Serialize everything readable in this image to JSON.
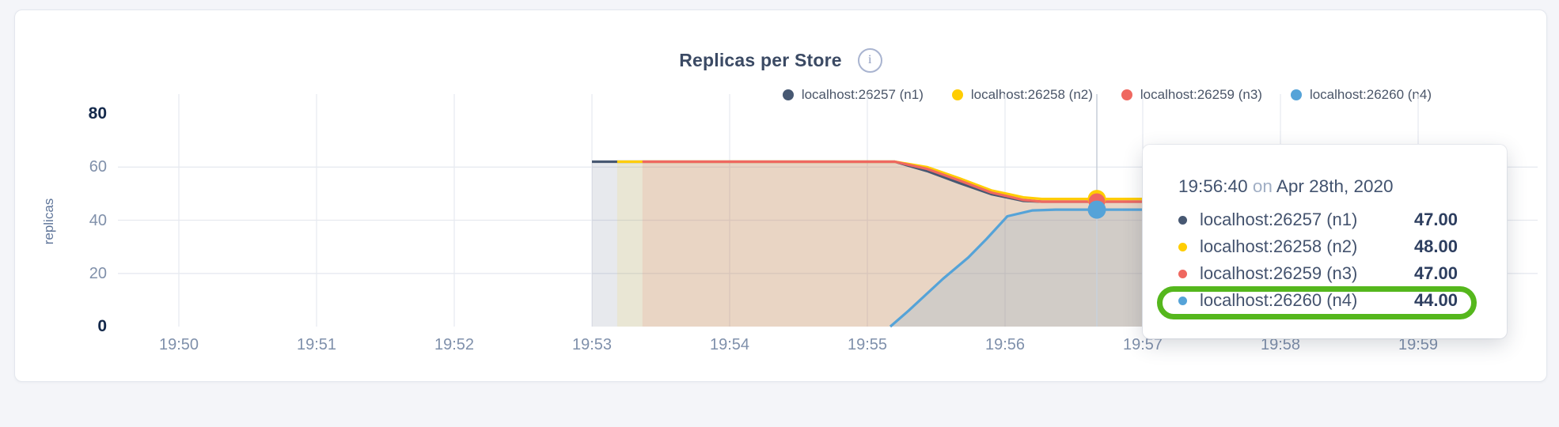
{
  "colors": {
    "page_bg": "#f4f5f9",
    "card_bg": "#ffffff",
    "grid": "#e7eaf0",
    "hover_line": "#c9d0da",
    "annotation_green": "#55b71d"
  },
  "info_icon_glyph": "i",
  "chart_data": {
    "type": "area",
    "title": "Replicas per Store",
    "xlabel": "",
    "ylabel": "replicas",
    "x_ticks": [
      "19:50",
      "19:51",
      "19:52",
      "19:53",
      "19:54",
      "19:55",
      "19:56",
      "19:57",
      "19:58",
      "19:59"
    ],
    "y_ticks": [
      0,
      20,
      40,
      60,
      80
    ],
    "bold_y_ticks": [
      0,
      80
    ],
    "ylim": [
      0,
      80
    ],
    "grid": true,
    "legend_position": "top-right",
    "x_unit_note": "seconds after 19:50:00 on Apr 28th, 2020",
    "series": [
      {
        "name": "localhost:26257 (n1)",
        "color": "#475872",
        "points": [
          [
            180,
            62
          ],
          [
            312,
            62
          ],
          [
            326,
            58.5
          ],
          [
            340,
            54
          ],
          [
            354,
            49.8
          ],
          [
            368,
            47.3
          ],
          [
            376,
            47
          ],
          [
            440,
            47
          ]
        ]
      },
      {
        "name": "localhost:26258 (n2)",
        "color": "#ffcd02",
        "points": [
          [
            191,
            62
          ],
          [
            312,
            62
          ],
          [
            326,
            60
          ],
          [
            340,
            55.8
          ],
          [
            354,
            51.2
          ],
          [
            368,
            48.6
          ],
          [
            376,
            48
          ],
          [
            440,
            48
          ]
        ]
      },
      {
        "name": "localhost:26259 (n3)",
        "color": "#ef6860",
        "points": [
          [
            202,
            62
          ],
          [
            312,
            62
          ],
          [
            326,
            59.3
          ],
          [
            340,
            55
          ],
          [
            354,
            50.4
          ],
          [
            368,
            47.6
          ],
          [
            376,
            47
          ],
          [
            440,
            47
          ]
        ]
      },
      {
        "name": "localhost:26260 (n4)",
        "color": "#55a3d8",
        "points": [
          [
            310,
            0
          ],
          [
            318,
            6
          ],
          [
            333,
            18
          ],
          [
            344,
            26
          ],
          [
            352,
            33
          ],
          [
            361,
            41.5
          ],
          [
            372,
            43.7
          ],
          [
            382,
            44
          ],
          [
            440,
            44
          ]
        ]
      }
    ],
    "hover": {
      "t": 400,
      "time_label": "19:56:40",
      "values": [
        47,
        48,
        47,
        44
      ]
    }
  },
  "tooltip": {
    "time": "19:56:40",
    "conj": "on",
    "date": "Apr 28th, 2020",
    "rows": [
      {
        "name": "localhost:26257 (n1)",
        "value": "47.00",
        "color": "#475872"
      },
      {
        "name": "localhost:26258 (n2)",
        "value": "48.00",
        "color": "#ffcd02"
      },
      {
        "name": "localhost:26259 (n3)",
        "value": "47.00",
        "color": "#ef6860"
      },
      {
        "name": "localhost:26260 (n4)",
        "value": "44.00",
        "color": "#55a3d8"
      }
    ],
    "highlighted_row": "localhost:26260 (n4)"
  }
}
